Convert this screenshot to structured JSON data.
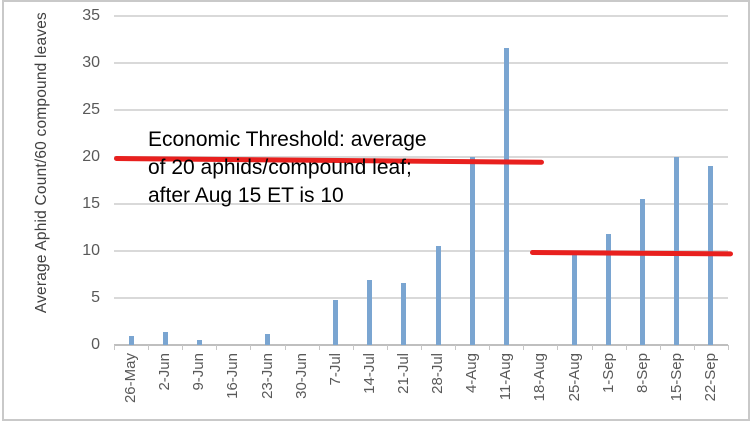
{
  "chart_data": {
    "type": "bar",
    "title": "",
    "xlabel": "",
    "ylabel": "Average Aphid Count/60 compound leaves",
    "categories": [
      "26-May",
      "2-Jun",
      "9-Jun",
      "16-Jun",
      "23-Jun",
      "30-Jun",
      "7-Jul",
      "14-Jul",
      "21-Jul",
      "28-Jul",
      "4-Aug",
      "11-Aug",
      "18-Aug",
      "25-Aug",
      "1-Sep",
      "8-Sep",
      "15-Sep",
      "22-Sep"
    ],
    "values": [
      1,
      1.4,
      0.5,
      0,
      1.2,
      0,
      4.8,
      6.9,
      6.6,
      10.5,
      20,
      31.6,
      0,
      9.8,
      11.8,
      15.5,
      20,
      19
    ],
    "ylim": [
      0,
      35
    ],
    "yticks": [
      0,
      5,
      10,
      15,
      20,
      25,
      30,
      35
    ],
    "grid": true,
    "legend_position": "none",
    "colors": {
      "bar": "#7aa5d1",
      "gridline": "#d9d9d9",
      "axis_line": "#bfbfbf",
      "tick_label": "#595959",
      "threshold": "#e8201e",
      "annotation_text": "#000000"
    },
    "annotation": {
      "lines": [
        "Economic Threshold: average",
        "of 20 aphids/compound leaf;",
        "after Aug 15 ET is 10"
      ]
    },
    "threshold_lines": [
      {
        "name": "economic-threshold-20",
        "value": 20,
        "from_category": "26-May",
        "to_category": "18-Aug",
        "span_categories": [
          0,
          12.6
        ]
      },
      {
        "name": "economic-threshold-10",
        "value": 10,
        "from_category": "18-Aug",
        "to_category": "22-Sep",
        "span_categories": [
          12.2,
          18.15
        ]
      }
    ]
  }
}
